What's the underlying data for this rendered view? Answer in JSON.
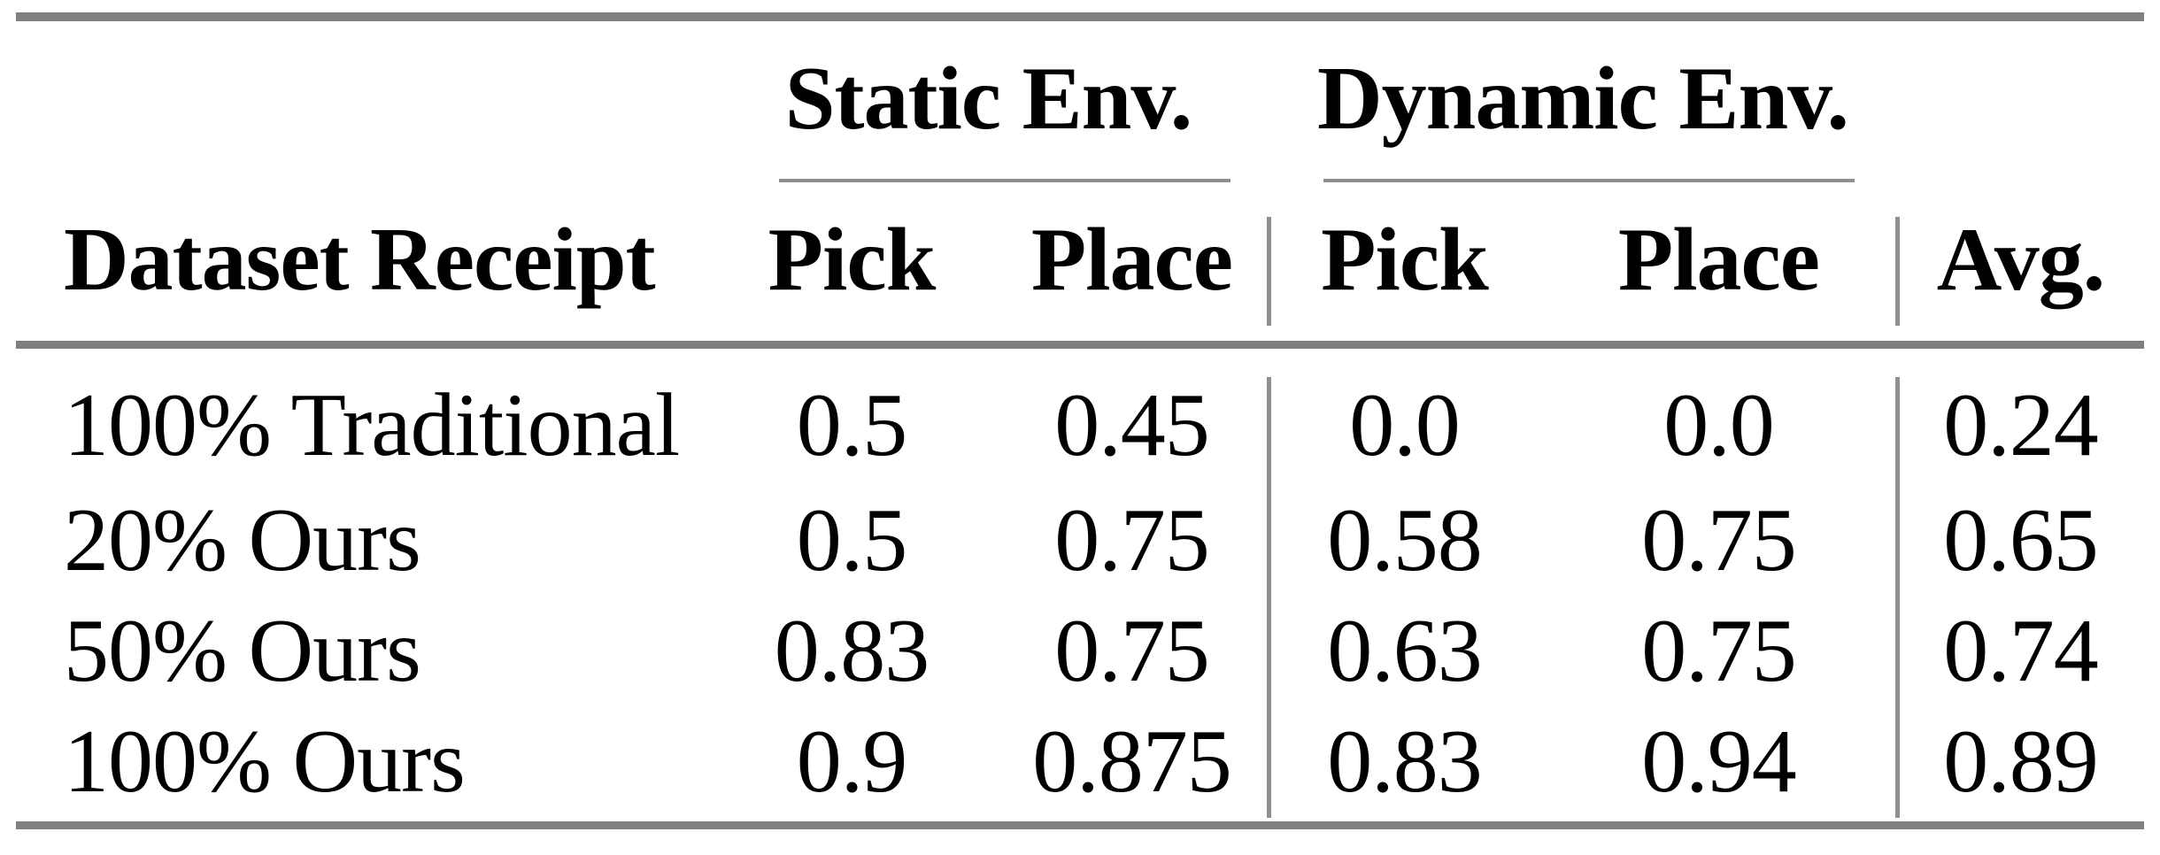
{
  "table": {
    "group_headers": [
      {
        "label": "Static Env."
      },
      {
        "label": "Dynamic Env."
      }
    ],
    "columns": [
      "Dataset Receipt",
      "Pick",
      "Place",
      "Pick",
      "Place",
      "Avg."
    ],
    "rows": [
      {
        "label": "100% Traditional",
        "values": [
          "0.5",
          "0.45",
          "0.0",
          "0.0",
          "0.24"
        ]
      },
      {
        "label": "20% Ours",
        "values": [
          "0.5",
          "0.75",
          "0.58",
          "0.75",
          "0.65"
        ]
      },
      {
        "label": "50% Ours",
        "values": [
          "0.83",
          "0.75",
          "0.63",
          "0.75",
          "0.74"
        ]
      },
      {
        "label": "100% Ours",
        "values": [
          "0.9",
          "0.875",
          "0.83",
          "0.94",
          "0.89"
        ]
      }
    ],
    "colors": {
      "thick_rule": "#7f7f7f",
      "thin_rule": "#8f8f8f",
      "text": "#000000",
      "background": "#ffffff"
    }
  }
}
